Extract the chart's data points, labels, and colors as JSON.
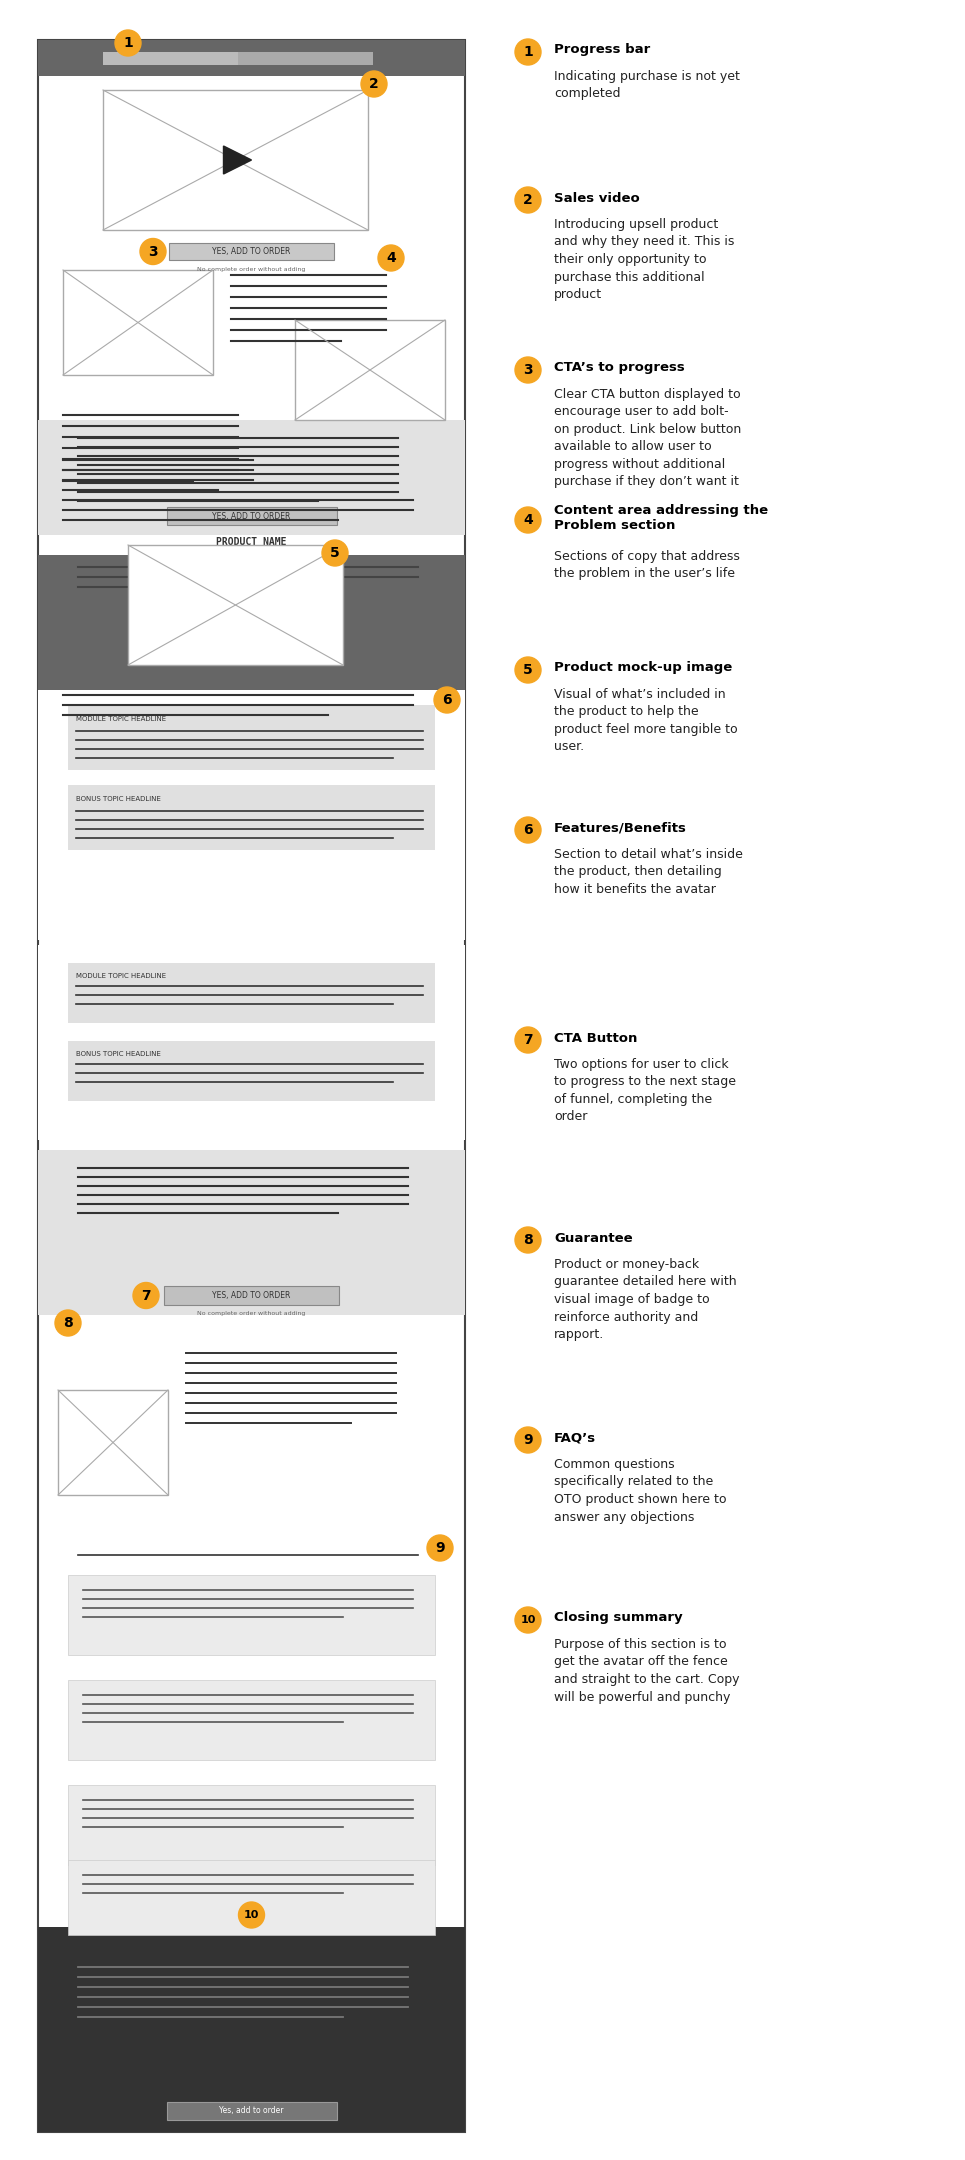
{
  "bg_color": "#ffffff",
  "annotation_color": "#f5a623",
  "annotations": [
    {
      "num": "1",
      "title": "Progress bar",
      "desc": "Indicating purchase is not yet\ncompleted"
    },
    {
      "num": "2",
      "title": "Sales video",
      "desc": "Introducing upsell product\nand why they need it. This is\ntheir only opportunity to\npurchase this additional\nproduct"
    },
    {
      "num": "3",
      "title": "CTA’s to progress",
      "desc": "Clear CTA button displayed to\nencourage user to add bolt-\non product. Link below button\navailable to allow user to\nprogress without additional\npurchase if they don’t want it"
    },
    {
      "num": "4",
      "title": "Content area addressing the\nProblem section",
      "desc": "Sections of copy that address\nthe problem in the user’s life"
    },
    {
      "num": "5",
      "title": "Product mock-up image",
      "desc": "Visual of what’s included in\nthe product to help the\nproduct feel more tangible to\nuser."
    },
    {
      "num": "6",
      "title": "Features/Benefits",
      "desc": "Section to detail what’s inside\nthe product, then detailing\nhow it benefits the avatar"
    },
    {
      "num": "7",
      "title": "CTA Button",
      "desc": "Two options for user to click\nto progress to the next stage\nof funnel, completing the\norder"
    },
    {
      "num": "8",
      "title": "Guarantee",
      "desc": "Product or money-back\nguarantee detailed here with\nvisual image of badge to\nreinforce authority and\nrapport."
    },
    {
      "num": "9",
      "title": "FAQ’s",
      "desc": "Common questions\nspecifically related to the\nOTO product shown here to\nanswer any objections"
    },
    {
      "num": "10",
      "title": "Closing summary",
      "desc": "Purpose of this section is to\nget the avatar off the fence\nand straight to the cart. Copy\nwill be powerful and punchy"
    }
  ]
}
